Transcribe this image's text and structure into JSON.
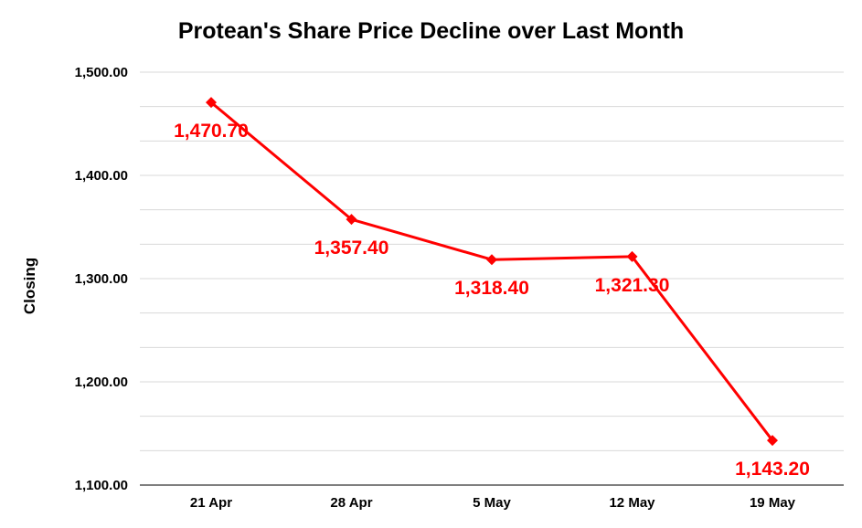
{
  "chart_data": {
    "type": "line",
    "title": "Protean's Share Price Decline over Last Month",
    "xlabel": "",
    "ylabel": "Closing",
    "categories": [
      "21 Apr",
      "28 Apr",
      "5 May",
      "12 May",
      "19 May"
    ],
    "values": [
      1470.7,
      1357.4,
      1318.4,
      1321.3,
      1143.2
    ],
    "data_labels": [
      "1,470.70",
      "1,357.40",
      "1,318.40",
      "1,321.30",
      "1,143.20"
    ],
    "ylim": [
      1100,
      1500
    ],
    "yticks": [
      1100,
      1200,
      1300,
      1400,
      1500
    ],
    "ytick_labels": [
      "1,100.00",
      "1,200.00",
      "1,300.00",
      "1,400.00",
      "1,500.00"
    ],
    "grid": true,
    "minor_gridlines": true,
    "marker": "diamond",
    "line_color": "#ff0000",
    "label_color": "#ff0000"
  }
}
